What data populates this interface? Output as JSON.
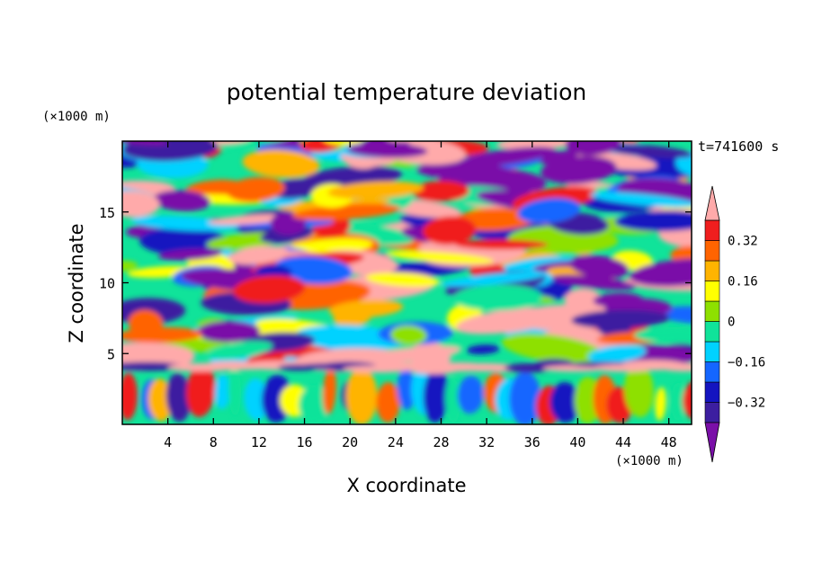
{
  "chart_data": {
    "type": "heatmap",
    "title": "potential temperature deviation",
    "xlabel": "X coordinate",
    "ylabel": "Z coordinate",
    "x_unit": "(×1000 m)",
    "y_unit": "(×1000 m)",
    "time_label": "t=741600 s",
    "xlim": [
      0,
      50
    ],
    "ylim": [
      0,
      20
    ],
    "x_ticks": [
      4,
      8,
      12,
      16,
      20,
      24,
      28,
      32,
      36,
      40,
      44,
      48
    ],
    "y_ticks": [
      5,
      10,
      15
    ],
    "colorbar": {
      "levels": [
        -0.4,
        -0.32,
        -0.24,
        -0.16,
        -0.08,
        0,
        0.08,
        0.16,
        0.24,
        0.32,
        0.4
      ],
      "tick_labels": [
        "0.32",
        "0.16",
        "0",
        "−0.16",
        "−0.32"
      ],
      "tick_values": [
        0.32,
        0.16,
        0,
        -0.16,
        -0.32
      ],
      "colors": [
        "#7a0fa8",
        "#3c1ea0",
        "#1414c0",
        "#1466ff",
        "#00d2ff",
        "#10e39a",
        "#8ee000",
        "#ffff00",
        "#ffb400",
        "#ff6400",
        "#f01e1e",
        "#ffaaaa"
      ]
    }
  }
}
